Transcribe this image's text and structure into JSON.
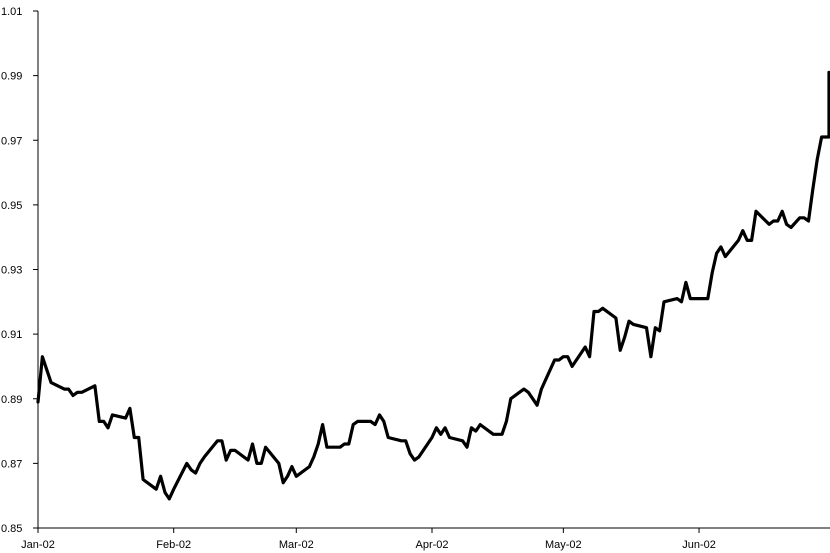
{
  "chart_data": {
    "type": "line",
    "title": "",
    "xlabel": "",
    "ylabel": "",
    "ylim": [
      0.85,
      1.01
    ],
    "xlim": [
      "2002-01-01",
      "2002-06-30"
    ],
    "yticks": [
      "0.85",
      "0.87",
      "0.89",
      "0.91",
      "0.93",
      "0.95",
      "0.97",
      "0.99",
      "1.01"
    ],
    "xticks": [
      {
        "label": "Jan-02",
        "date": "2002-01-01"
      },
      {
        "label": "Feb-02",
        "date": "2002-02-01"
      },
      {
        "label": "Mar-02",
        "date": "2002-03-01"
      },
      {
        "label": "Apr-02",
        "date": "2002-04-01"
      },
      {
        "label": "May-02",
        "date": "2002-05-01"
      },
      {
        "label": "Jun-02",
        "date": "2002-06-01"
      }
    ],
    "grid": false,
    "line_color": "#000000",
    "series": [
      {
        "points": [
          [
            "2002-01-01",
            0.889
          ],
          [
            "2002-01-02",
            0.903
          ],
          [
            "2002-01-04",
            0.895
          ],
          [
            "2002-01-07",
            0.893
          ],
          [
            "2002-01-08",
            0.893
          ],
          [
            "2002-01-09",
            0.891
          ],
          [
            "2002-01-10",
            0.892
          ],
          [
            "2002-01-11",
            0.892
          ],
          [
            "2002-01-14",
            0.894
          ],
          [
            "2002-01-15",
            0.883
          ],
          [
            "2002-01-16",
            0.883
          ],
          [
            "2002-01-17",
            0.881
          ],
          [
            "2002-01-18",
            0.885
          ],
          [
            "2002-01-21",
            0.884
          ],
          [
            "2002-01-22",
            0.887
          ],
          [
            "2002-01-23",
            0.878
          ],
          [
            "2002-01-24",
            0.878
          ],
          [
            "2002-01-25",
            0.865
          ],
          [
            "2002-01-28",
            0.862
          ],
          [
            "2002-01-29",
            0.866
          ],
          [
            "2002-01-30",
            0.861
          ],
          [
            "2002-01-31",
            0.859
          ],
          [
            "2002-02-01",
            0.862
          ],
          [
            "2002-02-04",
            0.87
          ],
          [
            "2002-02-05",
            0.868
          ],
          [
            "2002-02-06",
            0.867
          ],
          [
            "2002-02-07",
            0.87
          ],
          [
            "2002-02-08",
            0.872
          ],
          [
            "2002-02-11",
            0.877
          ],
          [
            "2002-02-12",
            0.877
          ],
          [
            "2002-02-13",
            0.871
          ],
          [
            "2002-02-14",
            0.874
          ],
          [
            "2002-02-15",
            0.874
          ],
          [
            "2002-02-18",
            0.871
          ],
          [
            "2002-02-19",
            0.876
          ],
          [
            "2002-02-20",
            0.87
          ],
          [
            "2002-02-21",
            0.87
          ],
          [
            "2002-02-22",
            0.875
          ],
          [
            "2002-02-25",
            0.87
          ],
          [
            "2002-02-26",
            0.864
          ],
          [
            "2002-02-27",
            0.866
          ],
          [
            "2002-02-28",
            0.869
          ],
          [
            "2002-03-01",
            0.866
          ],
          [
            "2002-03-04",
            0.869
          ],
          [
            "2002-03-05",
            0.872
          ],
          [
            "2002-03-06",
            0.876
          ],
          [
            "2002-03-07",
            0.882
          ],
          [
            "2002-03-08",
            0.875
          ],
          [
            "2002-03-11",
            0.875
          ],
          [
            "2002-03-12",
            0.876
          ],
          [
            "2002-03-13",
            0.876
          ],
          [
            "2002-03-14",
            0.882
          ],
          [
            "2002-03-15",
            0.883
          ],
          [
            "2002-03-18",
            0.883
          ],
          [
            "2002-03-19",
            0.882
          ],
          [
            "2002-03-20",
            0.885
          ],
          [
            "2002-03-21",
            0.883
          ],
          [
            "2002-03-22",
            0.878
          ],
          [
            "2002-03-25",
            0.877
          ],
          [
            "2002-03-26",
            0.877
          ],
          [
            "2002-03-27",
            0.873
          ],
          [
            "2002-03-28",
            0.871
          ],
          [
            "2002-03-29",
            0.872
          ],
          [
            "2002-04-01",
            0.878
          ],
          [
            "2002-04-02",
            0.881
          ],
          [
            "2002-04-03",
            0.879
          ],
          [
            "2002-04-04",
            0.881
          ],
          [
            "2002-04-05",
            0.878
          ],
          [
            "2002-04-08",
            0.877
          ],
          [
            "2002-04-09",
            0.875
          ],
          [
            "2002-04-10",
            0.881
          ],
          [
            "2002-04-11",
            0.88
          ],
          [
            "2002-04-12",
            0.882
          ],
          [
            "2002-04-15",
            0.879
          ],
          [
            "2002-04-16",
            0.879
          ],
          [
            "2002-04-17",
            0.879
          ],
          [
            "2002-04-18",
            0.883
          ],
          [
            "2002-04-19",
            0.89
          ],
          [
            "2002-04-22",
            0.893
          ],
          [
            "2002-04-23",
            0.892
          ],
          [
            "2002-04-24",
            0.89
          ],
          [
            "2002-04-25",
            0.888
          ],
          [
            "2002-04-26",
            0.893
          ],
          [
            "2002-04-29",
            0.902
          ],
          [
            "2002-04-30",
            0.902
          ],
          [
            "2002-05-01",
            0.903
          ],
          [
            "2002-05-02",
            0.903
          ],
          [
            "2002-05-03",
            0.9
          ],
          [
            "2002-05-06",
            0.906
          ],
          [
            "2002-05-07",
            0.903
          ],
          [
            "2002-05-08",
            0.917
          ],
          [
            "2002-05-09",
            0.917
          ],
          [
            "2002-05-10",
            0.918
          ],
          [
            "2002-05-13",
            0.915
          ],
          [
            "2002-05-14",
            0.905
          ],
          [
            "2002-05-15",
            0.909
          ],
          [
            "2002-05-16",
            0.914
          ],
          [
            "2002-05-17",
            0.913
          ],
          [
            "2002-05-20",
            0.912
          ],
          [
            "2002-05-21",
            0.903
          ],
          [
            "2002-05-22",
            0.912
          ],
          [
            "2002-05-23",
            0.911
          ],
          [
            "2002-05-24",
            0.92
          ],
          [
            "2002-05-27",
            0.921
          ],
          [
            "2002-05-28",
            0.92
          ],
          [
            "2002-05-29",
            0.926
          ],
          [
            "2002-05-30",
            0.921
          ],
          [
            "2002-05-31",
            0.921
          ],
          [
            "2002-06-03",
            0.921
          ],
          [
            "2002-06-04",
            0.929
          ],
          [
            "2002-06-05",
            0.935
          ],
          [
            "2002-06-06",
            0.937
          ],
          [
            "2002-06-07",
            0.934
          ],
          [
            "2002-06-10",
            0.939
          ],
          [
            "2002-06-11",
            0.942
          ],
          [
            "2002-06-12",
            0.939
          ],
          [
            "2002-06-13",
            0.939
          ],
          [
            "2002-06-14",
            0.948
          ],
          [
            "2002-06-17",
            0.944
          ],
          [
            "2002-06-18",
            0.945
          ],
          [
            "2002-06-19",
            0.945
          ],
          [
            "2002-06-20",
            0.948
          ],
          [
            "2002-06-21",
            0.944
          ],
          [
            "2002-06-22",
            0.943
          ],
          [
            "2002-06-24",
            0.946
          ],
          [
            "2002-06-25",
            0.946
          ],
          [
            "2002-06-26",
            0.945
          ],
          [
            "2002-06-27",
            0.955
          ],
          [
            "2002-06-28",
            0.964
          ],
          [
            "2002-06-29",
            0.971
          ],
          [
            "2002-06-30",
            0.971
          ],
          [
            "2002-07-01",
            0.971
          ],
          [
            "2002-07-02",
            0.98
          ],
          [
            "2002-07-03",
            0.983
          ],
          [
            "2002-07-04",
            0.989
          ],
          [
            "2002-07-05",
            0.991
          ]
        ]
      }
    ]
  }
}
